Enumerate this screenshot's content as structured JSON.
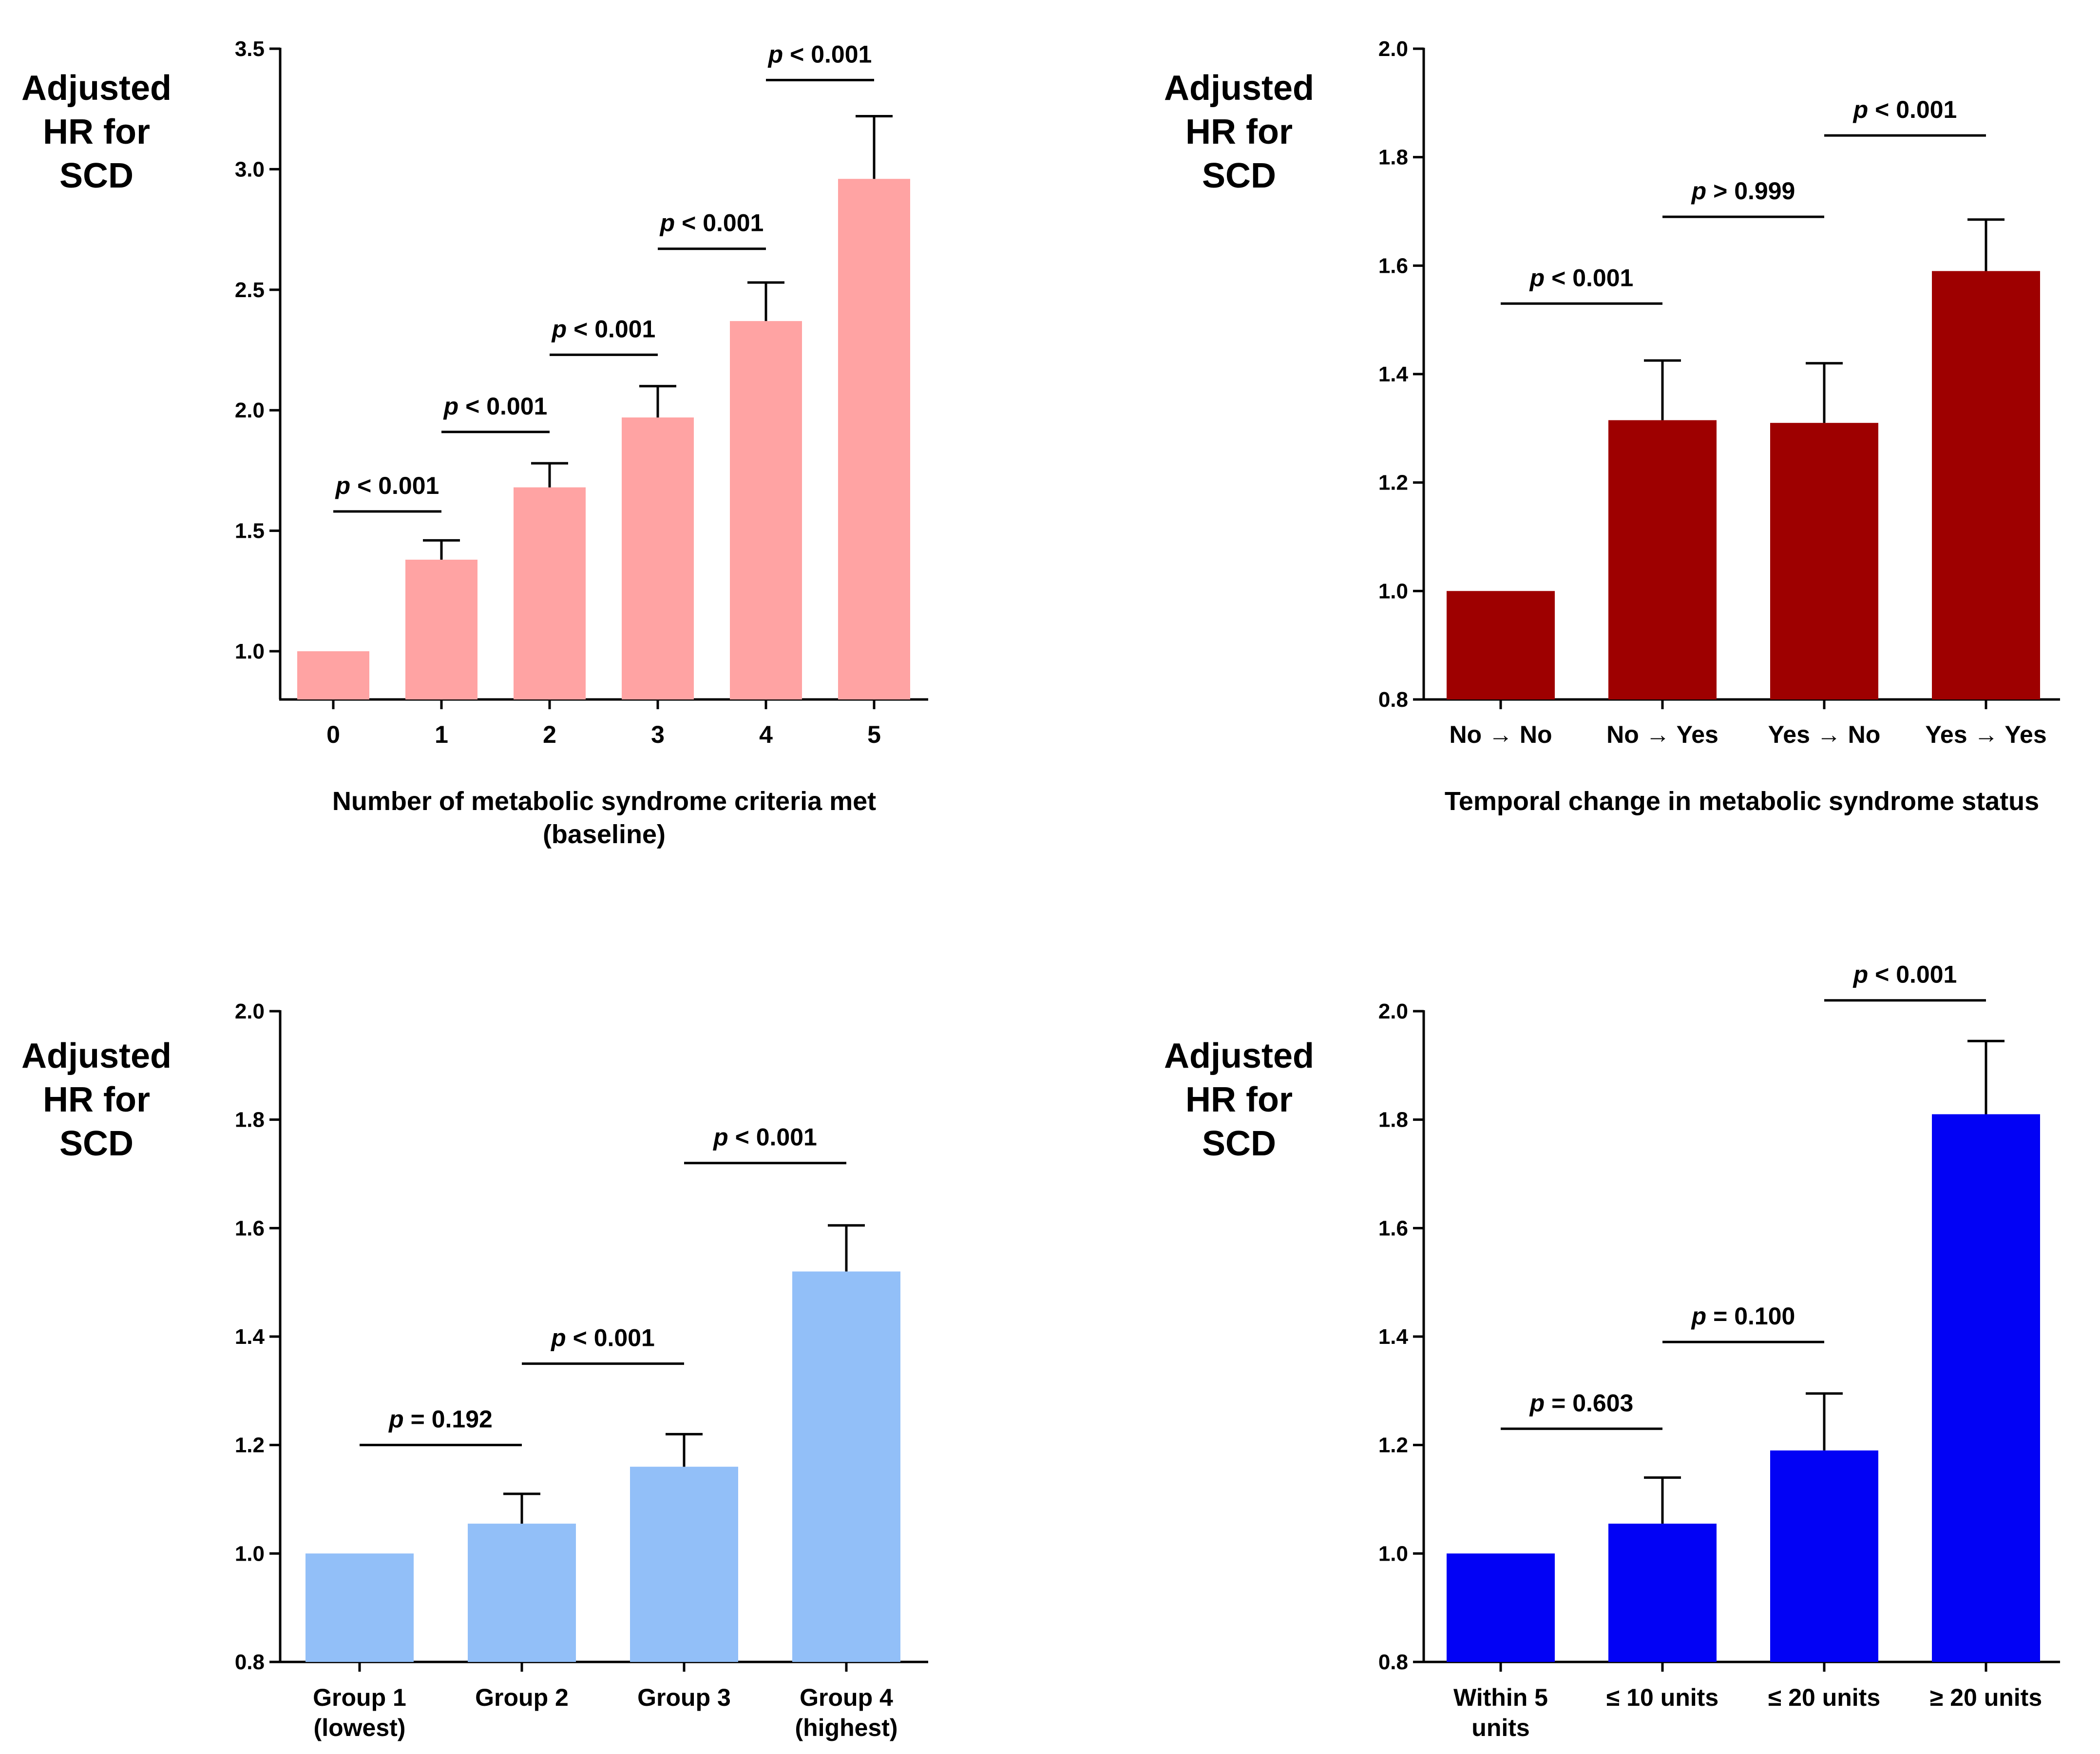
{
  "chart_data": [
    {
      "type": "bar",
      "ylabel": [
        "Adjusted",
        "HR for",
        "SCD"
      ],
      "xlabel": [
        "Number of metabolic syndrome criteria met",
        "(baseline)"
      ],
      "categories": [
        [
          "0"
        ],
        [
          "1"
        ],
        [
          "2"
        ],
        [
          "3"
        ],
        [
          "4"
        ],
        [
          "5"
        ]
      ],
      "values": [
        1.0,
        1.38,
        1.68,
        1.97,
        2.37,
        2.96
      ],
      "error_upper": [
        null,
        1.46,
        1.78,
        2.1,
        2.53,
        3.22
      ],
      "ylim": [
        0.8,
        3.5
      ],
      "yticks": [
        "1.0",
        "1.5",
        "2.0",
        "2.5",
        "3.0",
        "3.5"
      ],
      "color": "#ffa3a3",
      "annotations": [
        {
          "between": [
            0,
            1
          ],
          "y": 1.58,
          "italic": "p",
          "text": " < 0.001"
        },
        {
          "between": [
            1,
            2
          ],
          "y": 1.91,
          "italic": "p",
          "text": " < 0.001"
        },
        {
          "between": [
            2,
            3
          ],
          "y": 2.23,
          "italic": "p",
          "text": " < 0.001"
        },
        {
          "between": [
            3,
            4
          ],
          "y": 2.67,
          "italic": "p",
          "text": " < 0.001"
        },
        {
          "between": [
            4,
            5
          ],
          "y": 3.37,
          "italic": "p",
          "text": " < 0.001"
        }
      ]
    },
    {
      "type": "bar",
      "ylabel": [
        "Adjusted",
        "HR for",
        "SCD"
      ],
      "xlabel": [
        "Temporal change in metabolic syndrome status"
      ],
      "categories": [
        [
          "No → No"
        ],
        [
          "No → Yes"
        ],
        [
          "Yes → No"
        ],
        [
          "Yes → Yes"
        ]
      ],
      "values": [
        1.0,
        1.315,
        1.31,
        1.59
      ],
      "error_upper": [
        null,
        1.425,
        1.42,
        1.685
      ],
      "ylim": [
        0.8,
        2.0
      ],
      "yticks": [
        "0.8",
        "1.0",
        "1.2",
        "1.4",
        "1.6",
        "1.8",
        "2.0"
      ],
      "color": "#9e0000",
      "annotations": [
        {
          "between": [
            0,
            1
          ],
          "y": 1.53,
          "italic": "p",
          "text": " < 0.001"
        },
        {
          "between": [
            1,
            2
          ],
          "y": 1.69,
          "italic": "p",
          "text": " > 0.999"
        },
        {
          "between": [
            2,
            3
          ],
          "y": 1.84,
          "italic": "p",
          "text": " < 0.001"
        }
      ]
    },
    {
      "type": "bar",
      "ylabel": [
        "Adjusted",
        "HR for",
        "SCD"
      ],
      "xlabel": [],
      "categories": [
        [
          "Group 1",
          "(lowest)"
        ],
        [
          "Group 2"
        ],
        [
          "Group 3"
        ],
        [
          "Group 4",
          "(highest)"
        ]
      ],
      "values": [
        1.0,
        1.055,
        1.16,
        1.52
      ],
      "error_upper": [
        null,
        1.11,
        1.22,
        1.605
      ],
      "ylim": [
        0.8,
        2.0
      ],
      "yticks": [
        "0.8",
        "1.0",
        "1.2",
        "1.4",
        "1.6",
        "1.8",
        "2.0"
      ],
      "color": "#92bff8",
      "annotations": [
        {
          "between": [
            0,
            1
          ],
          "y": 1.2,
          "italic": "p",
          "text": " = 0.192"
        },
        {
          "between": [
            1,
            2
          ],
          "y": 1.35,
          "italic": "p",
          "text": " < 0.001"
        },
        {
          "between": [
            2,
            3
          ],
          "y": 1.72,
          "italic": "p",
          "text": " < 0.001"
        }
      ]
    },
    {
      "type": "bar",
      "ylabel": [
        "Adjusted",
        "HR for",
        "SCD"
      ],
      "xlabel": [],
      "categories": [
        [
          "Within 5",
          "units"
        ],
        [
          "≤ 10 units"
        ],
        [
          "≤ 20 units"
        ],
        [
          "≥ 20 units"
        ]
      ],
      "values": [
        1.0,
        1.055,
        1.19,
        1.81
      ],
      "error_upper": [
        null,
        1.14,
        1.295,
        1.945
      ],
      "ylim": [
        0.8,
        2.0
      ],
      "yticks": [
        "0.8",
        "1.0",
        "1.2",
        "1.4",
        "1.6",
        "1.8",
        "2.0"
      ],
      "color": "#0202f5",
      "annotations": [
        {
          "between": [
            0,
            1
          ],
          "y": 1.23,
          "italic": "p",
          "text": " = 0.603"
        },
        {
          "between": [
            1,
            2
          ],
          "y": 1.39,
          "italic": "p",
          "text": " = 0.100"
        },
        {
          "between": [
            2,
            3
          ],
          "y": 2.02,
          "italic": "p",
          "text": " < 0.001"
        }
      ]
    }
  ]
}
